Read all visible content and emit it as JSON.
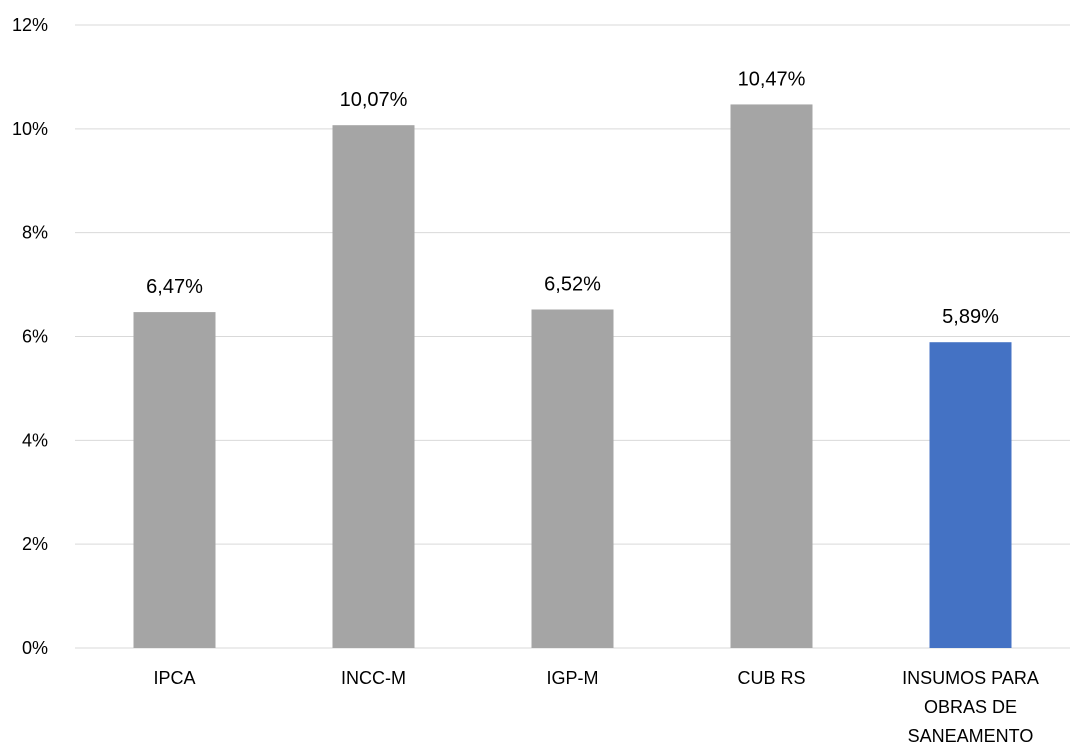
{
  "chart_data": {
    "type": "bar",
    "categories": [
      [
        "IPCA"
      ],
      [
        "INCC-M"
      ],
      [
        "IGP-M"
      ],
      [
        "CUB RS"
      ],
      [
        "INSUMOS PARA",
        "OBRAS DE",
        "SANEAMENTO"
      ]
    ],
    "values": [
      6.47,
      10.07,
      6.52,
      10.47,
      5.89
    ],
    "data_labels": [
      "6,47%",
      "10,07%",
      "6,52%",
      "10,47%",
      "5,89%"
    ],
    "bar_colors": [
      "#a5a5a5",
      "#a5a5a5",
      "#a5a5a5",
      "#a5a5a5",
      "#4472c4"
    ],
    "ylim": [
      0,
      12
    ],
    "y_ticks": [
      0,
      2,
      4,
      6,
      8,
      10,
      12
    ],
    "y_tick_labels": [
      "0%",
      "2%",
      "4%",
      "6%",
      "8%",
      "10%",
      "12%"
    ],
    "grid": true,
    "gridline_color": "#d9d9d9",
    "title": "",
    "xlabel": "",
    "ylabel": ""
  }
}
